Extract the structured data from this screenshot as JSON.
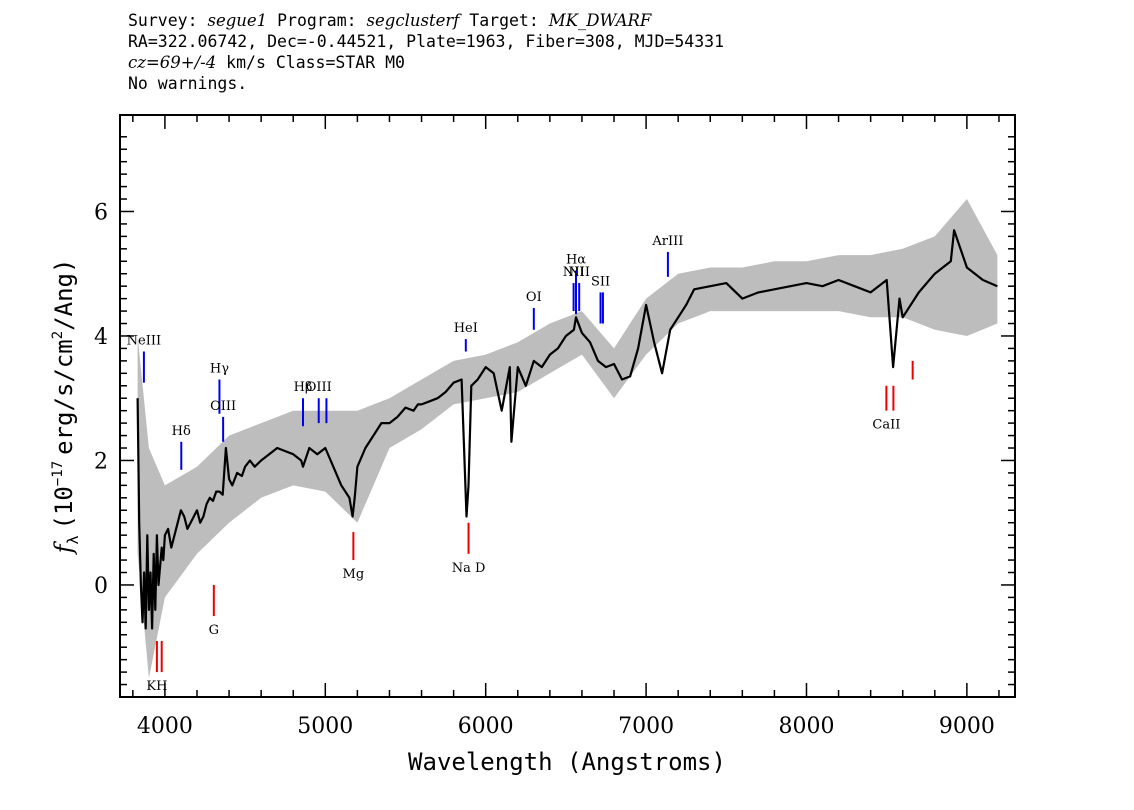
{
  "header": {
    "survey_label": "Survey:",
    "survey": "segue1",
    "program_label": "Program:",
    "program": "segclusterf",
    "target_label": "Target:",
    "target": "MK_DWARF",
    "line2": "RA=322.06742, Dec=-0.44521, Plate=1963, Fiber=308, MJD=54331",
    "cz": "cz=69+/-4",
    "cz_rest": "km/s Class=STAR M0",
    "line4": "No warnings."
  },
  "chart_data": {
    "type": "line",
    "xlabel": "Wavelength (Angstroms)",
    "ylabel_prefix": "f",
    "ylabel_sub": "λ",
    "ylabel_mid": "(10",
    "ylabel_exp": "−17",
    "ylabel_mid2": "erg/s/cm",
    "ylabel_exp2": "2",
    "ylabel_end": "/Ang)",
    "xlim": [
      3720,
      9300
    ],
    "ylim": [
      -1.8,
      7.55
    ],
    "xticks": [
      4000,
      5000,
      6000,
      7000,
      8000,
      9000
    ],
    "yticks": [
      0,
      2,
      4,
      6
    ],
    "colors": {
      "flux": "#000000",
      "error": "#bdbdbd",
      "emission": "#0000ee",
      "absorption": "#ee0000"
    },
    "series": [
      {
        "role": "flux",
        "x": [
          3830,
          3840,
          3850,
          3860,
          3870,
          3880,
          3890,
          3900,
          3910,
          3920,
          3930,
          3940,
          3950,
          3960,
          3970,
          3980,
          3990,
          4000,
          4020,
          4040,
          4060,
          4080,
          4100,
          4120,
          4140,
          4160,
          4180,
          4200,
          4220,
          4240,
          4260,
          4280,
          4300,
          4320,
          4340,
          4360,
          4380,
          4400,
          4420,
          4450,
          4480,
          4500,
          4530,
          4560,
          4600,
          4650,
          4700,
          4750,
          4800,
          4850,
          4861,
          4900,
          4950,
          5000,
          5050,
          5100,
          5150,
          5170,
          5183,
          5200,
          5250,
          5300,
          5350,
          5400,
          5450,
          5500,
          5550,
          5577,
          5600,
          5650,
          5700,
          5750,
          5800,
          5850,
          5880,
          5893,
          5910,
          5950,
          6000,
          6050,
          6100,
          6150,
          6160,
          6200,
          6250,
          6300,
          6350,
          6400,
          6450,
          6500,
          6550,
          6563,
          6600,
          6650,
          6700,
          6750,
          6800,
          6850,
          6900,
          6950,
          7000,
          7050,
          7100,
          7150,
          7200,
          7250,
          7300,
          7400,
          7500,
          7600,
          7700,
          7800,
          7900,
          8000,
          8100,
          8200,
          8300,
          8400,
          8500,
          8540,
          8580,
          8600,
          8700,
          8800,
          8900,
          8920,
          9000,
          9100,
          9190
        ],
        "y": [
          3.0,
          1.0,
          0.0,
          -0.6,
          0.2,
          -0.7,
          0.8,
          -0.4,
          0.2,
          -0.7,
          0.5,
          -0.4,
          0.8,
          0.0,
          0.3,
          0.6,
          0.4,
          0.8,
          0.9,
          0.6,
          0.8,
          1.0,
          1.2,
          1.1,
          0.9,
          1.0,
          1.1,
          1.2,
          1.0,
          1.1,
          1.3,
          1.4,
          1.35,
          1.5,
          1.5,
          1.45,
          2.2,
          1.7,
          1.6,
          1.8,
          1.75,
          1.9,
          2.0,
          1.9,
          2.0,
          2.1,
          2.2,
          2.15,
          2.1,
          2.0,
          1.9,
          2.2,
          2.1,
          2.2,
          1.9,
          1.6,
          1.4,
          1.1,
          1.4,
          1.9,
          2.2,
          2.4,
          2.6,
          2.6,
          2.7,
          2.85,
          2.8,
          2.9,
          2.9,
          2.95,
          3.0,
          3.1,
          3.25,
          3.3,
          1.1,
          1.6,
          3.2,
          3.3,
          3.5,
          3.4,
          2.8,
          3.5,
          2.3,
          3.5,
          3.2,
          3.6,
          3.5,
          3.7,
          3.8,
          4.0,
          4.1,
          4.3,
          4.05,
          3.9,
          3.6,
          3.5,
          3.55,
          3.3,
          3.35,
          3.8,
          4.5,
          3.9,
          3.4,
          4.1,
          4.3,
          4.5,
          4.75,
          4.8,
          4.85,
          4.6,
          4.7,
          4.75,
          4.8,
          4.85,
          4.8,
          4.9,
          4.8,
          4.7,
          4.9,
          3.5,
          4.6,
          4.3,
          4.7,
          5.0,
          5.2,
          5.7,
          5.1,
          4.9,
          4.8
        ]
      },
      {
        "role": "error-envelope",
        "x": [
          3830,
          3900,
          4000,
          4200,
          4400,
          4600,
          4800,
          5000,
          5200,
          5400,
          5600,
          5800,
          6000,
          6200,
          6400,
          6600,
          6800,
          7000,
          7200,
          7400,
          7600,
          7800,
          8000,
          8200,
          8400,
          8600,
          8800,
          9000,
          9190
        ],
        "upper": [
          4.0,
          2.2,
          1.6,
          1.9,
          2.4,
          2.6,
          2.8,
          2.8,
          2.8,
          3.0,
          3.3,
          3.6,
          3.7,
          3.9,
          4.2,
          4.4,
          3.8,
          4.6,
          5.0,
          5.1,
          5.1,
          5.2,
          5.2,
          5.3,
          5.3,
          5.4,
          5.6,
          6.2,
          5.3
        ],
        "lower": [
          0.5,
          -1.5,
          -0.2,
          0.5,
          1.0,
          1.4,
          1.6,
          1.5,
          1.0,
          2.2,
          2.5,
          2.9,
          3.0,
          3.1,
          3.4,
          3.7,
          3.0,
          3.7,
          4.2,
          4.4,
          4.4,
          4.4,
          4.4,
          4.4,
          4.3,
          4.3,
          4.1,
          4.0,
          4.2
        ]
      }
    ],
    "emission_lines": [
      {
        "label": "NeIII",
        "wavelength": 3869,
        "y_top": 3.75,
        "y_bottom": 3.25
      },
      {
        "label": "Hδ",
        "wavelength": 4102,
        "y_top": 2.3,
        "y_bottom": 1.85
      },
      {
        "label": "Hγ",
        "wavelength": 4340,
        "y_top": 3.3,
        "y_bottom": 2.75
      },
      {
        "label": "OIII",
        "wavelength": 4363,
        "y_top": 2.7,
        "y_bottom": 2.3
      },
      {
        "label": "Hβ",
        "wavelength": 4861,
        "y_top": 3.0,
        "y_bottom": 2.55
      },
      {
        "label": "OIII",
        "wavelength": 4959,
        "y_top": 3.0,
        "y_bottom": 2.6
      },
      {
        "label": "",
        "wavelength": 5007,
        "y_top": 3.0,
        "y_bottom": 2.6
      },
      {
        "label": "HeI",
        "wavelength": 5876,
        "y_top": 3.95,
        "y_bottom": 3.75
      },
      {
        "label": "OI",
        "wavelength": 6300,
        "y_top": 4.45,
        "y_bottom": 4.1
      },
      {
        "label": "NII",
        "wavelength": 6548,
        "y_top": 4.85,
        "y_bottom": 4.4
      },
      {
        "label": "Hα",
        "wavelength": 6563,
        "y_top": 5.05,
        "y_bottom": 4.35
      },
      {
        "label": "NII",
        "wavelength": 6583,
        "y_top": 4.85,
        "y_bottom": 4.4
      },
      {
        "label": "SII",
        "wavelength": 6716,
        "y_top": 4.7,
        "y_bottom": 4.2
      },
      {
        "label": "",
        "wavelength": 6731,
        "y_top": 4.7,
        "y_bottom": 4.2
      },
      {
        "label": "ArIII",
        "wavelength": 7136,
        "y_top": 5.35,
        "y_bottom": 4.95
      }
    ],
    "absorption_lines": [
      {
        "label": "KH",
        "wavelength": 3950,
        "y_top": -0.9,
        "y_bottom": -1.4
      },
      {
        "label": "",
        "wavelength": 3980,
        "y_top": -0.9,
        "y_bottom": -1.4
      },
      {
        "label": "G",
        "wavelength": 4305,
        "y_top": 0.0,
        "y_bottom": -0.5
      },
      {
        "label": "Mg",
        "wavelength": 5175,
        "y_top": 0.85,
        "y_bottom": 0.4
      },
      {
        "label": "Na D",
        "wavelength": 5893,
        "y_top": 1.0,
        "y_bottom": 0.5
      },
      {
        "label": "CaII",
        "wavelength": 8498,
        "y_top": 3.2,
        "y_bottom": 2.8
      },
      {
        "label": "",
        "wavelength": 8542,
        "y_top": 3.2,
        "y_bottom": 2.8
      },
      {
        "label": "",
        "wavelength": 8662,
        "y_top": 3.6,
        "y_bottom": 3.3
      }
    ]
  }
}
